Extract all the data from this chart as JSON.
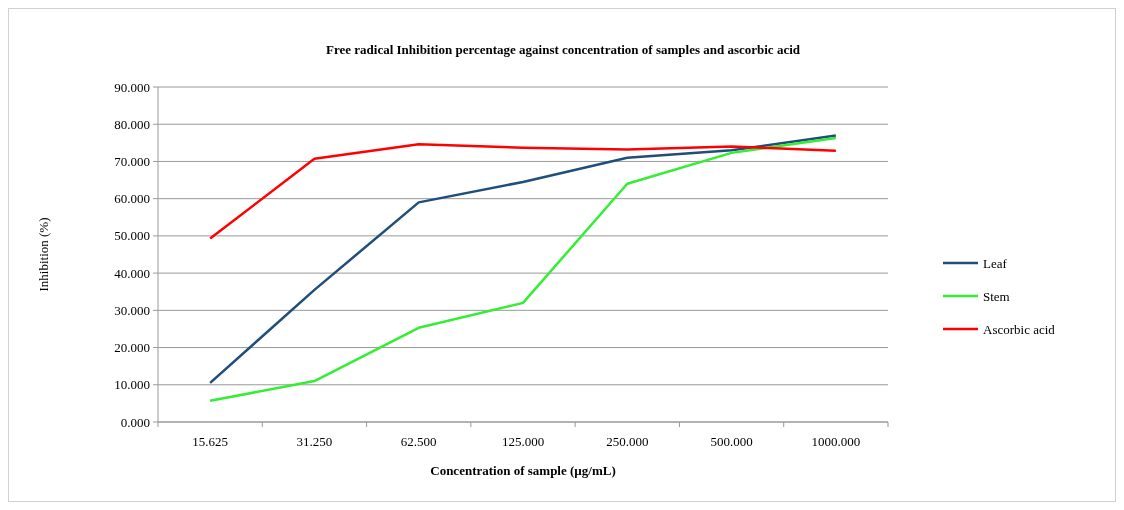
{
  "chart_data": {
    "type": "line",
    "title": "Free radical Inhibition percentage against concentration of samples and ascorbic acid",
    "xlabel": "Concentration of sample (µg/mL)",
    "ylabel": "Inhibition (%)",
    "categories": [
      "15.625",
      "31.250",
      "62.500",
      "125.000",
      "250.000",
      "500.000",
      "1000.000"
    ],
    "series": [
      {
        "name": "Leaf",
        "color": "#1f4e79",
        "values": [
          10.5,
          35.5,
          59.0,
          64.5,
          71.0,
          73.0,
          77.0
        ]
      },
      {
        "name": "Stem",
        "color": "#33ee33",
        "values": [
          5.7,
          11.0,
          25.3,
          32.0,
          64.0,
          72.3,
          76.3
        ]
      },
      {
        "name": "Ascorbic acid",
        "color": "#ff0000",
        "values": [
          49.3,
          70.7,
          74.6,
          73.7,
          73.2,
          74.0,
          72.9
        ]
      }
    ],
    "ylim": [
      0,
      90
    ],
    "yticks": [
      {
        "value": 0,
        "label": "0.000"
      },
      {
        "value": 10,
        "label": "10.000"
      },
      {
        "value": 20,
        "label": "20.000"
      },
      {
        "value": 30,
        "label": "30.000"
      },
      {
        "value": 40,
        "label": "40.000"
      },
      {
        "value": 50,
        "label": "50.000"
      },
      {
        "value": 60,
        "label": "60.000"
      },
      {
        "value": 70,
        "label": "70.000"
      },
      {
        "value": 80,
        "label": "80.000"
      },
      {
        "value": 90,
        "label": "90.000"
      }
    ],
    "grid": "y",
    "legend": "right",
    "marker": "none",
    "line_style": "solid"
  }
}
